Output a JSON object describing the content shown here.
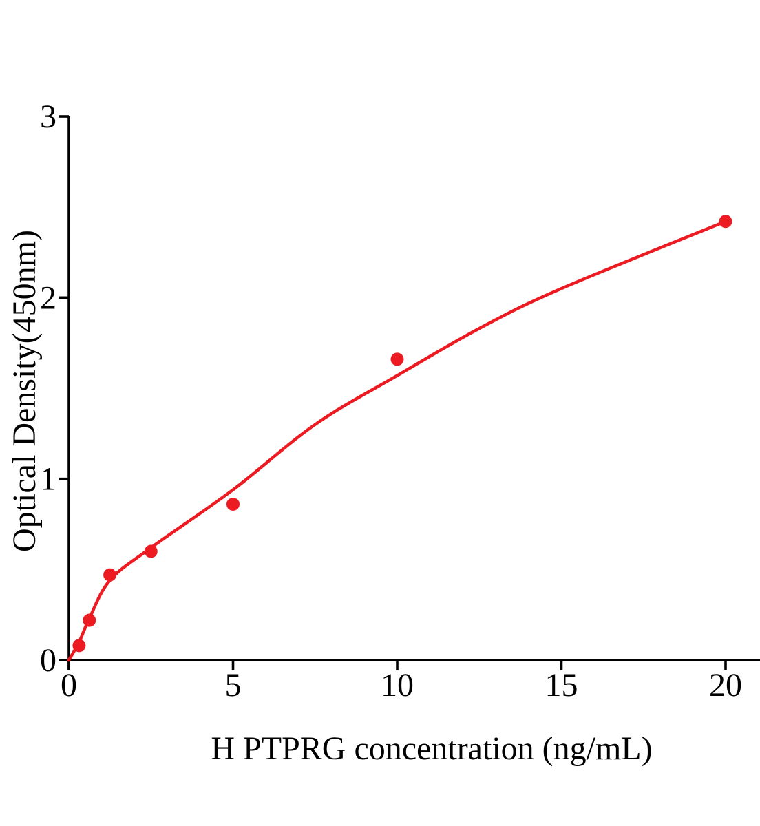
{
  "figure": {
    "background_color": "#ffffff",
    "text_color": "#000000"
  },
  "chart_data": {
    "type": "scatter",
    "title": "",
    "xlabel": "H PTPRG concentration (ng/mL)",
    "ylabel": "Optical Density(450nm)",
    "xlim": [
      0,
      21.05
    ],
    "ylim": [
      0,
      3
    ],
    "x_ticks": [
      "0",
      "5",
      "10",
      "15",
      "20"
    ],
    "x_tick_values": [
      0,
      5,
      10,
      15,
      20
    ],
    "y_ticks": [
      "0",
      "1",
      "2",
      "3"
    ],
    "y_tick_values": [
      0,
      1,
      2,
      3
    ],
    "grid": false,
    "legend": null,
    "axis_color": "#000000",
    "point_color": "#ec1b22",
    "curve_color": "#ec1b22",
    "points": [
      {
        "x": 0.3125,
        "y": 0.08
      },
      {
        "x": 0.625,
        "y": 0.22
      },
      {
        "x": 1.25,
        "y": 0.47
      },
      {
        "x": 2.5,
        "y": 0.6
      },
      {
        "x": 5,
        "y": 0.86
      },
      {
        "x": 10,
        "y": 1.66
      },
      {
        "x": 20,
        "y": 2.42
      }
    ],
    "fit_curve_points": [
      {
        "x": 0,
        "y": 0
      },
      {
        "x": 0.3125,
        "y": 0.1
      },
      {
        "x": 0.625,
        "y": 0.23
      },
      {
        "x": 1.25,
        "y": 0.44
      },
      {
        "x": 2.5,
        "y": 0.62
      },
      {
        "x": 5,
        "y": 0.94
      },
      {
        "x": 7.5,
        "y": 1.3
      },
      {
        "x": 10,
        "y": 1.57
      },
      {
        "x": 12.5,
        "y": 1.83
      },
      {
        "x": 15,
        "y": 2.05
      },
      {
        "x": 20,
        "y": 2.42
      }
    ]
  }
}
